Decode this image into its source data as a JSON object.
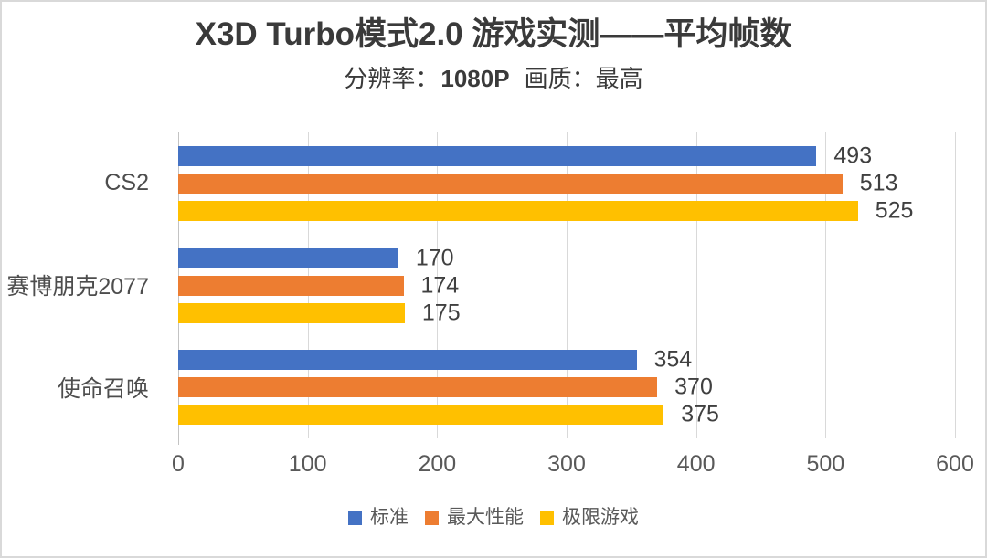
{
  "header": {
    "title": "X3D Turbo模式2.0 游戏实测——平均帧数",
    "subtitle_prefix": "分辨率：",
    "subtitle_resolution": "1080P",
    "subtitle_mid": "画质：",
    "subtitle_quality": "最高"
  },
  "chart_data": {
    "type": "bar",
    "orientation": "horizontal",
    "title": "X3D Turbo模式2.0 游戏实测——平均帧数",
    "subtitle": "分辨率：1080P 画质：最高",
    "categories": [
      "CS2",
      "赛博朋克2077",
      "使命召唤"
    ],
    "series": [
      {
        "name": "标准",
        "color": "#4472C4",
        "values": [
          493,
          170,
          354
        ]
      },
      {
        "name": "最大性能",
        "color": "#ED7D31",
        "values": [
          513,
          174,
          370
        ]
      },
      {
        "name": "极限游戏",
        "color": "#FFC000",
        "values": [
          525,
          175,
          375
        ]
      }
    ],
    "x_axis": {
      "min": 0,
      "max": 600,
      "tick_step": 100,
      "ticks": [
        0,
        100,
        200,
        300,
        400,
        500,
        600
      ]
    },
    "xlabel": "",
    "ylabel": "",
    "xlim": [
      0,
      600
    ],
    "gridlines": true,
    "data_labels": "outside-end",
    "legend_position": "bottom",
    "colors": {
      "gridline": "#D9D9D9",
      "axis_line": "#C3C3C3",
      "tick_text": "#595959",
      "category_text": "#4D4D4D",
      "value_text": "#404040",
      "legend_text": "#595959",
      "title_text": "#3A3A3A",
      "frame_border": "#D9D9D9",
      "background": "#FFFFFF"
    }
  }
}
